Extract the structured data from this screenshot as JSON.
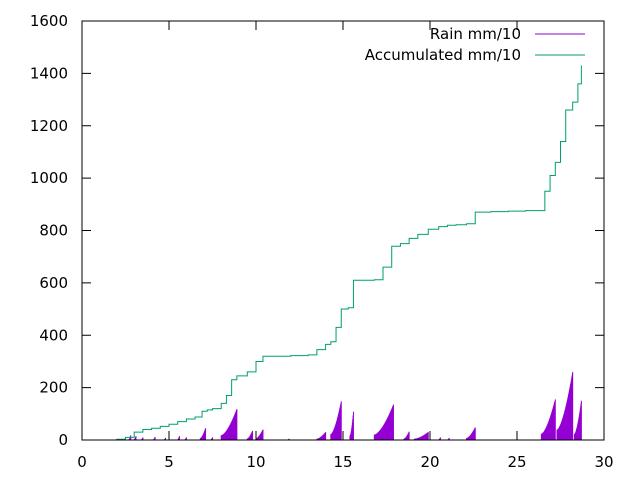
{
  "chart_data": {
    "type": "line",
    "title": "",
    "xlabel": "",
    "ylabel": "",
    "xlim": [
      0,
      30
    ],
    "ylim": [
      0,
      1600
    ],
    "x_ticks": [
      "0",
      "5",
      "10",
      "15",
      "20",
      "25",
      "30"
    ],
    "y_ticks": [
      "0",
      "200",
      "400",
      "600",
      "800",
      "1000",
      "1200",
      "1400",
      "1600"
    ],
    "grid": false,
    "legend_position": "top-right",
    "series": [
      {
        "name": "Rain mm/10",
        "style": "impulses",
        "color": "#9400d3",
        "bursts": [
          [
            1.9,
            2.0,
            3
          ],
          [
            2.4,
            2.5,
            8
          ],
          [
            2.7,
            2.8,
            18
          ],
          [
            3.0,
            3.1,
            15
          ],
          [
            3.4,
            3.5,
            10
          ],
          [
            4.1,
            4.2,
            12
          ],
          [
            4.7,
            4.8,
            8
          ],
          [
            5.5,
            5.6,
            15
          ],
          [
            5.9,
            6.0,
            10
          ],
          [
            6.8,
            7.1,
            45
          ],
          [
            7.4,
            7.5,
            10
          ],
          [
            8.0,
            8.9,
            118
          ],
          [
            9.5,
            9.8,
            35
          ],
          [
            10.0,
            10.4,
            40
          ],
          [
            11.8,
            11.9,
            5
          ],
          [
            13.5,
            14.0,
            30
          ],
          [
            14.3,
            14.9,
            148
          ],
          [
            15.4,
            15.6,
            108
          ],
          [
            16.8,
            17.9,
            135
          ],
          [
            18.5,
            18.8,
            32
          ],
          [
            19.1,
            19.9,
            30
          ],
          [
            20.5,
            20.6,
            10
          ],
          [
            21.0,
            21.1,
            8
          ],
          [
            22.1,
            22.6,
            48
          ],
          [
            26.4,
            27.2,
            155
          ],
          [
            27.3,
            28.2,
            260
          ],
          [
            28.3,
            28.7,
            150
          ]
        ]
      },
      {
        "name": "Accumulated mm/10",
        "style": "lines",
        "color": "#009e73",
        "x": [
          1.5,
          2.0,
          2.5,
          3.0,
          3.5,
          4.0,
          4.5,
          5.0,
          5.5,
          6.0,
          6.5,
          6.9,
          7.2,
          7.5,
          8.0,
          8.3,
          8.6,
          8.9,
          9.5,
          10.0,
          10.4,
          11.0,
          12.0,
          13.0,
          13.5,
          14.0,
          14.3,
          14.6,
          14.9,
          15.3,
          15.6,
          16.0,
          16.8,
          17.3,
          17.8,
          18.3,
          18.8,
          19.3,
          19.9,
          20.5,
          21.0,
          21.5,
          22.1,
          22.6,
          23.5,
          24.5,
          25.5,
          26.4,
          26.6,
          26.9,
          27.2,
          27.5,
          27.8,
          28.2,
          28.5,
          28.7
        ],
        "y": [
          0,
          3,
          10,
          30,
          40,
          45,
          52,
          60,
          70,
          80,
          88,
          110,
          115,
          120,
          140,
          170,
          230,
          245,
          260,
          300,
          320,
          320,
          322,
          325,
          345,
          365,
          375,
          430,
          500,
          505,
          610,
          610,
          612,
          660,
          740,
          750,
          770,
          785,
          805,
          815,
          820,
          822,
          826,
          870,
          872,
          874,
          876,
          876,
          950,
          1010,
          1060,
          1140,
          1260,
          1290,
          1360,
          1430
        ]
      }
    ]
  }
}
